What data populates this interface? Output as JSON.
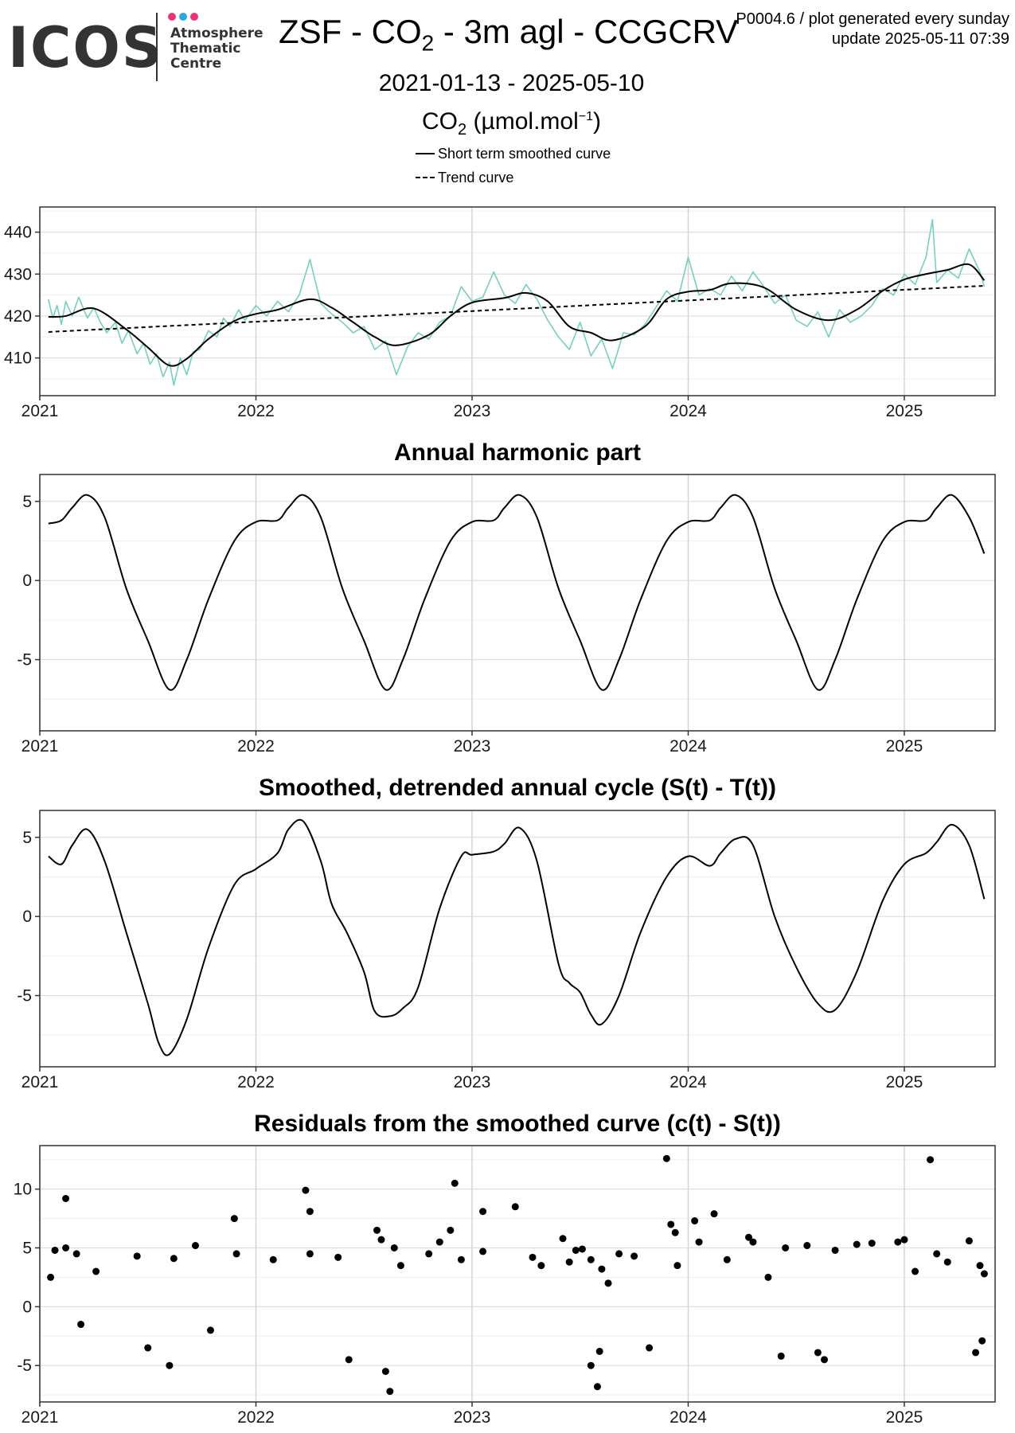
{
  "header": {
    "logo": {
      "word": "ICOS",
      "line1": "Atmosphere",
      "line2": "Thematic",
      "line3": "Centre",
      "dot_colors": [
        "#e8357a",
        "#2aa6e0",
        "#e8357a"
      ]
    },
    "title_prefix": "ZSF - CO",
    "title_sub": "2",
    "title_suffix": " - 3m agl - CCGCRV",
    "meta_line1": "P0004.6 / plot generated every sunday",
    "meta_line2": "update  2025-05-11 07:39",
    "date_range": "2021-01-13 - 2025-05-10",
    "ylabel_pre": "CO",
    "ylabel_sub": "2",
    "ylabel_unit": " (µmol.mol",
    "ylabel_sup": "−1",
    "ylabel_close": ")"
  },
  "legend": {
    "solid": "Short term smoothed curve",
    "dashed": "Trend curve"
  },
  "chart_data": [
    {
      "type": "line",
      "title": "",
      "xlim": [
        2021.0,
        2025.42
      ],
      "ylim": [
        401,
        446
      ],
      "x_ticks": [
        "2021",
        "2022",
        "2023",
        "2024",
        "2025"
      ],
      "y_ticks": [
        "410",
        "420",
        "430",
        "440"
      ],
      "grid": true,
      "series": [
        {
          "name": "Short term smoothed curve",
          "color": "#000000",
          "style": "solid",
          "x": [
            2021.04,
            2021.12,
            2021.25,
            2021.4,
            2021.5,
            2021.6,
            2021.68,
            2021.78,
            2021.9,
            2022.0,
            2022.1,
            2022.25,
            2022.35,
            2022.45,
            2022.55,
            2022.65,
            2022.8,
            2022.9,
            2023.0,
            2023.15,
            2023.25,
            2023.35,
            2023.45,
            2023.55,
            2023.65,
            2023.8,
            2023.9,
            2024.0,
            2024.1,
            2024.2,
            2024.35,
            2024.5,
            2024.65,
            2024.78,
            2024.9,
            2025.0,
            2025.1,
            2025.2,
            2025.3,
            2025.37
          ],
          "y": [
            419.8,
            420.0,
            421.8,
            416.8,
            412.5,
            408.2,
            409.8,
            414.5,
            418.8,
            420.5,
            421.5,
            424.0,
            422.0,
            418.5,
            415.0,
            413.0,
            415.5,
            420.0,
            423.2,
            424.3,
            425.5,
            423.5,
            417.5,
            416.0,
            414.2,
            417.5,
            424.0,
            425.8,
            426.2,
            427.8,
            426.8,
            421.5,
            419.0,
            421.5,
            426.0,
            428.7,
            430.0,
            431.0,
            432.3,
            428.5
          ]
        },
        {
          "name": "Trend curve",
          "color": "#000000",
          "style": "dashed",
          "x": [
            2021.04,
            2025.37
          ],
          "y": [
            416.2,
            427.2
          ]
        },
        {
          "name": "Observations",
          "color": "#77cfc0",
          "style": "solid",
          "x": [
            2021.04,
            2021.06,
            2021.08,
            2021.1,
            2021.12,
            2021.15,
            2021.18,
            2021.22,
            2021.25,
            2021.28,
            2021.31,
            2021.35,
            2021.38,
            2021.41,
            2021.45,
            2021.48,
            2021.51,
            2021.54,
            2021.57,
            2021.6,
            2021.62,
            2021.65,
            2021.68,
            2021.71,
            2021.74,
            2021.78,
            2021.82,
            2021.85,
            2021.88,
            2021.92,
            2021.95,
            2022.0,
            2022.05,
            2022.1,
            2022.15,
            2022.2,
            2022.25,
            2022.3,
            2022.35,
            2022.4,
            2022.45,
            2022.5,
            2022.55,
            2022.6,
            2022.65,
            2022.7,
            2022.75,
            2022.8,
            2022.85,
            2022.9,
            2022.95,
            2023.0,
            2023.05,
            2023.1,
            2023.15,
            2023.2,
            2023.25,
            2023.3,
            2023.35,
            2023.4,
            2023.45,
            2023.5,
            2023.55,
            2023.6,
            2023.65,
            2023.7,
            2023.75,
            2023.8,
            2023.85,
            2023.9,
            2023.95,
            2024.0,
            2024.05,
            2024.1,
            2024.15,
            2024.2,
            2024.25,
            2024.3,
            2024.35,
            2024.4,
            2024.45,
            2024.5,
            2024.55,
            2024.6,
            2024.65,
            2024.7,
            2024.75,
            2024.8,
            2024.85,
            2024.9,
            2024.95,
            2025.0,
            2025.05,
            2025.1,
            2025.13,
            2025.15,
            2025.2,
            2025.25,
            2025.3,
            2025.35,
            2025.37
          ],
          "y": [
            424.0,
            419.5,
            422.5,
            418.0,
            423.5,
            420.0,
            424.5,
            419.5,
            422.0,
            418.5,
            416.0,
            418.5,
            413.5,
            416.5,
            411.0,
            413.5,
            408.5,
            411.0,
            405.5,
            409.0,
            403.5,
            410.0,
            406.0,
            411.5,
            412.0,
            416.5,
            415.0,
            419.5,
            417.5,
            421.5,
            419.0,
            422.5,
            420.0,
            423.5,
            421.0,
            425.0,
            433.5,
            423.0,
            420.5,
            418.5,
            416.0,
            417.5,
            412.0,
            414.0,
            406.0,
            412.5,
            416.0,
            414.5,
            418.5,
            420.0,
            427.0,
            423.5,
            424.5,
            430.5,
            425.0,
            423.0,
            427.5,
            424.0,
            419.0,
            415.0,
            412.0,
            418.5,
            410.5,
            414.5,
            407.5,
            416.0,
            415.5,
            418.0,
            422.0,
            426.0,
            423.5,
            434.0,
            425.0,
            426.5,
            425.0,
            429.5,
            426.0,
            430.5,
            427.0,
            423.0,
            425.0,
            419.0,
            417.5,
            421.0,
            415.0,
            421.5,
            418.5,
            420.0,
            422.5,
            426.5,
            425.0,
            430.0,
            427.5,
            434.0,
            443.0,
            428.0,
            431.0,
            429.0,
            436.0,
            430.5,
            427.0
          ]
        }
      ]
    },
    {
      "type": "line",
      "title": "Annual harmonic part",
      "xlim": [
        2021.0,
        2025.42
      ],
      "ylim": [
        -9.5,
        6.7
      ],
      "x_ticks": [
        "2021",
        "2022",
        "2023",
        "2024",
        "2025"
      ],
      "y_ticks": [
        "5",
        "0",
        "-5"
      ],
      "grid": true,
      "series": [
        {
          "name": "",
          "color": "#000000",
          "style": "solid",
          "x": [
            2021.04,
            2021.1,
            2021.15,
            2021.22,
            2021.3,
            2021.4,
            2021.5,
            2021.6,
            2021.68,
            2021.78,
            2021.9,
            2022.0,
            2022.1,
            2022.15,
            2022.22,
            2022.3,
            2022.4,
            2022.5,
            2022.6,
            2022.68,
            2022.78,
            2022.9,
            2023.0,
            2023.1,
            2023.15,
            2023.22,
            2023.3,
            2023.4,
            2023.5,
            2023.6,
            2023.68,
            2023.78,
            2023.9,
            2024.0,
            2024.1,
            2024.15,
            2024.22,
            2024.3,
            2024.4,
            2024.5,
            2024.6,
            2024.68,
            2024.78,
            2024.9,
            2025.0,
            2025.1,
            2025.15,
            2025.22,
            2025.3,
            2025.37
          ],
          "y": [
            3.6,
            3.8,
            4.6,
            5.4,
            4.0,
            -0.5,
            -3.8,
            -6.9,
            -5.0,
            -1.2,
            2.5,
            3.7,
            3.8,
            4.6,
            5.4,
            4.0,
            -0.5,
            -3.8,
            -6.9,
            -5.0,
            -1.2,
            2.5,
            3.7,
            3.8,
            4.6,
            5.4,
            4.0,
            -0.5,
            -3.8,
            -6.9,
            -5.0,
            -1.2,
            2.5,
            3.7,
            3.8,
            4.6,
            5.4,
            4.0,
            -0.5,
            -3.8,
            -6.9,
            -5.0,
            -1.2,
            2.5,
            3.7,
            3.8,
            4.6,
            5.4,
            4.0,
            1.7
          ]
        }
      ]
    },
    {
      "type": "line",
      "title": "Smoothed, detrended annual cycle (S(t) - T(t))",
      "xlim": [
        2021.0,
        2025.42
      ],
      "ylim": [
        -9.5,
        6.7
      ],
      "x_ticks": [
        "2021",
        "2022",
        "2023",
        "2024",
        "2025"
      ],
      "y_ticks": [
        "5",
        "0",
        "-5"
      ],
      "grid": true,
      "series": [
        {
          "name": "",
          "color": "#000000",
          "style": "solid",
          "x": [
            2021.04,
            2021.1,
            2021.15,
            2021.22,
            2021.3,
            2021.4,
            2021.5,
            2021.55,
            2021.6,
            2021.68,
            2021.78,
            2021.9,
            2022.0,
            2022.1,
            2022.15,
            2022.22,
            2022.3,
            2022.35,
            2022.42,
            2022.5,
            2022.55,
            2022.62,
            2022.68,
            2022.75,
            2022.85,
            2022.95,
            2023.0,
            2023.1,
            2023.15,
            2023.22,
            2023.3,
            2023.4,
            2023.45,
            2023.5,
            2023.55,
            2023.6,
            2023.68,
            2023.78,
            2023.9,
            2024.0,
            2024.1,
            2024.15,
            2024.22,
            2024.3,
            2024.4,
            2024.5,
            2024.6,
            2024.68,
            2024.78,
            2024.9,
            2025.0,
            2025.1,
            2025.15,
            2025.22,
            2025.3,
            2025.37
          ],
          "y": [
            3.8,
            3.3,
            4.5,
            5.5,
            3.5,
            -1.0,
            -5.5,
            -8.0,
            -8.7,
            -6.5,
            -2.0,
            2.0,
            3.0,
            4.0,
            5.5,
            6.0,
            3.5,
            0.8,
            -1.0,
            -3.5,
            -6.0,
            -6.3,
            -5.8,
            -4.5,
            0.5,
            3.8,
            3.9,
            4.1,
            4.6,
            5.6,
            3.5,
            -3.0,
            -4.2,
            -4.8,
            -6.2,
            -6.8,
            -5.0,
            -1.0,
            2.5,
            3.8,
            3.2,
            4.0,
            4.9,
            4.5,
            0.0,
            -3.2,
            -5.5,
            -5.9,
            -3.5,
            1.0,
            3.3,
            4.0,
            4.7,
            5.8,
            4.5,
            1.1
          ]
        }
      ]
    },
    {
      "type": "scatter",
      "title": "Residuals from the smoothed curve (c(t) - S(t))",
      "xlim": [
        2021.0,
        2025.42
      ],
      "ylim": [
        -8.1,
        13.7
      ],
      "x_ticks": [
        "2021",
        "2022",
        "2023",
        "2024",
        "2025"
      ],
      "y_ticks": [
        "10",
        "5",
        "0",
        "-5"
      ],
      "grid": true,
      "series": [
        {
          "name": "",
          "color": "#000000",
          "x": [
            2021.05,
            2021.07,
            2021.12,
            2021.12,
            2021.17,
            2021.19,
            2021.26,
            2021.45,
            2021.5,
            2021.6,
            2021.62,
            2021.72,
            2021.79,
            2021.9,
            2021.91,
            2022.08,
            2022.23,
            2022.25,
            2022.25,
            2022.38,
            2022.43,
            2022.56,
            2022.58,
            2022.6,
            2022.62,
            2022.64,
            2022.67,
            2022.8,
            2022.85,
            2022.9,
            2022.92,
            2022.95,
            2023.05,
            2023.05,
            2023.2,
            2023.28,
            2023.32,
            2023.42,
            2023.45,
            2023.48,
            2023.51,
            2023.55,
            2023.55,
            2023.58,
            2023.59,
            2023.6,
            2023.63,
            2023.68,
            2023.75,
            2023.82,
            2023.9,
            2023.92,
            2023.94,
            2023.95,
            2024.03,
            2024.05,
            2024.12,
            2024.18,
            2024.28,
            2024.3,
            2024.37,
            2024.43,
            2024.45,
            2024.55,
            2024.6,
            2024.63,
            2024.68,
            2024.78,
            2024.85,
            2024.97,
            2025.0,
            2025.05,
            2025.12,
            2025.15,
            2025.2,
            2025.3,
            2025.33,
            2025.35,
            2025.37,
            2025.36
          ],
          "y": [
            2.5,
            4.8,
            9.2,
            5.0,
            4.5,
            -1.5,
            3.0,
            4.3,
            -3.5,
            -5.0,
            4.1,
            5.2,
            -2.0,
            7.5,
            4.5,
            4.0,
            9.9,
            8.1,
            4.5,
            4.2,
            -4.5,
            6.5,
            5.7,
            -5.5,
            -7.2,
            5.0,
            3.5,
            4.5,
            5.5,
            6.5,
            10.5,
            4.0,
            4.7,
            8.1,
            8.5,
            4.2,
            3.5,
            5.8,
            3.8,
            4.8,
            4.9,
            4.0,
            -5.0,
            -6.8,
            -3.8,
            3.2,
            2.0,
            4.5,
            4.3,
            -3.5,
            12.6,
            7.0,
            6.3,
            3.5,
            7.3,
            5.5,
            7.9,
            4.0,
            5.9,
            5.5,
            2.5,
            -4.2,
            5.0,
            5.2,
            -3.9,
            -4.5,
            4.8,
            5.3,
            5.4,
            5.5,
            5.7,
            3.0,
            12.5,
            4.5,
            3.8,
            5.6,
            -3.9,
            3.5,
            2.8,
            -2.9
          ]
        }
      ]
    }
  ]
}
